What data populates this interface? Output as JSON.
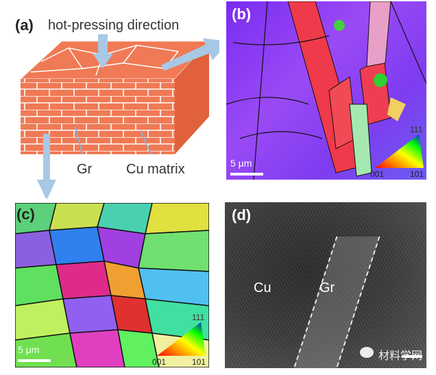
{
  "panels": {
    "a": {
      "label": "(a)",
      "direction_label": "hot-pressing direction",
      "gr_label": "Gr",
      "cu_label": "Cu matrix"
    },
    "b": {
      "label": "(b)",
      "scale": "5 μm",
      "ipf": [
        "111",
        "001",
        "101"
      ]
    },
    "c": {
      "label": "(c)",
      "scale": "5 μm",
      "ipf": [
        "111",
        "001",
        "101"
      ]
    },
    "d": {
      "label": "(d)",
      "cu_label": "Cu",
      "gr_label": "Gr"
    }
  },
  "watermark": "材料学网",
  "colors": {
    "brick": "#f07a55",
    "arrow": "#a8c8e6"
  }
}
